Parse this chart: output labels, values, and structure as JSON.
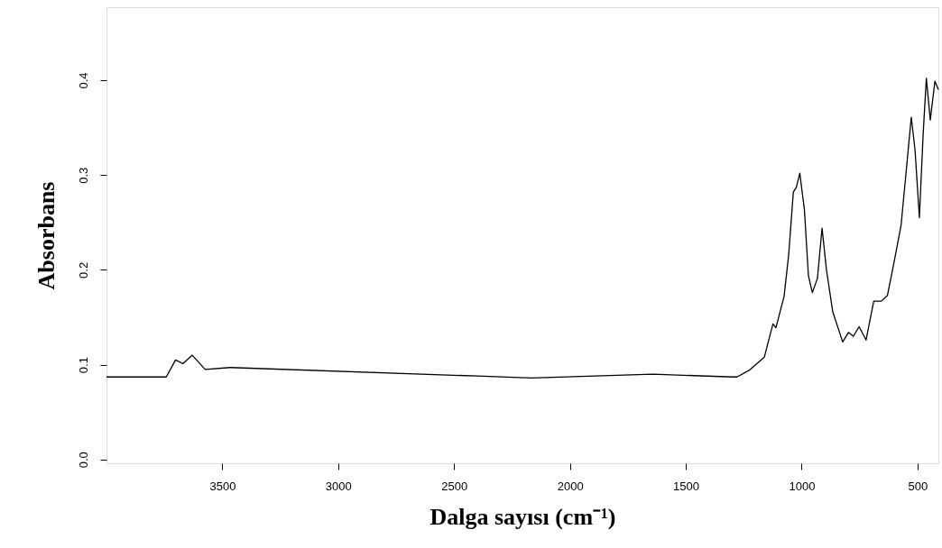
{
  "chart_data": {
    "type": "line",
    "xlabel": "Dalga sayısı (cm⁻¹)",
    "ylabel": "Absorbans",
    "xlim": [
      4000,
      410
    ],
    "ylim": [
      -0.004,
      0.477
    ],
    "xticks": [
      3500,
      3000,
      2500,
      2000,
      1500,
      1000,
      500
    ],
    "yticks": [
      {
        "value": 0,
        "label": "0.0"
      },
      0.1,
      0.2,
      0.3,
      0.4
    ],
    "grid": false,
    "marker": "none",
    "line_style": "solid",
    "series": [
      {
        "color": "#000000",
        "x": [
          4000,
          3742,
          3702,
          3670,
          3630,
          3574,
          3466,
          2400,
          2167,
          1643,
          1295,
          1279,
          1227,
          1161,
          1124,
          1111,
          1076,
          1056,
          1036,
          1023,
          1008,
          988,
          971,
          954,
          932,
          912,
          893,
          866,
          823,
          798,
          777,
          752,
          722,
          689,
          656,
          630,
          603,
          571,
          544,
          527,
          511,
          492,
          476,
          462,
          445,
          425,
          410
        ],
        "values": [
          0.087,
          0.087,
          0.105,
          0.101,
          0.11,
          0.095,
          0.097,
          0.088,
          0.086,
          0.09,
          0.087,
          0.087,
          0.094,
          0.108,
          0.143,
          0.139,
          0.172,
          0.216,
          0.282,
          0.287,
          0.302,
          0.263,
          0.194,
          0.176,
          0.191,
          0.244,
          0.2,
          0.156,
          0.124,
          0.134,
          0.13,
          0.14,
          0.126,
          0.167,
          0.167,
          0.173,
          0.206,
          0.247,
          0.317,
          0.361,
          0.327,
          0.255,
          0.342,
          0.402,
          0.358,
          0.399,
          0.39
        ]
      }
    ]
  }
}
